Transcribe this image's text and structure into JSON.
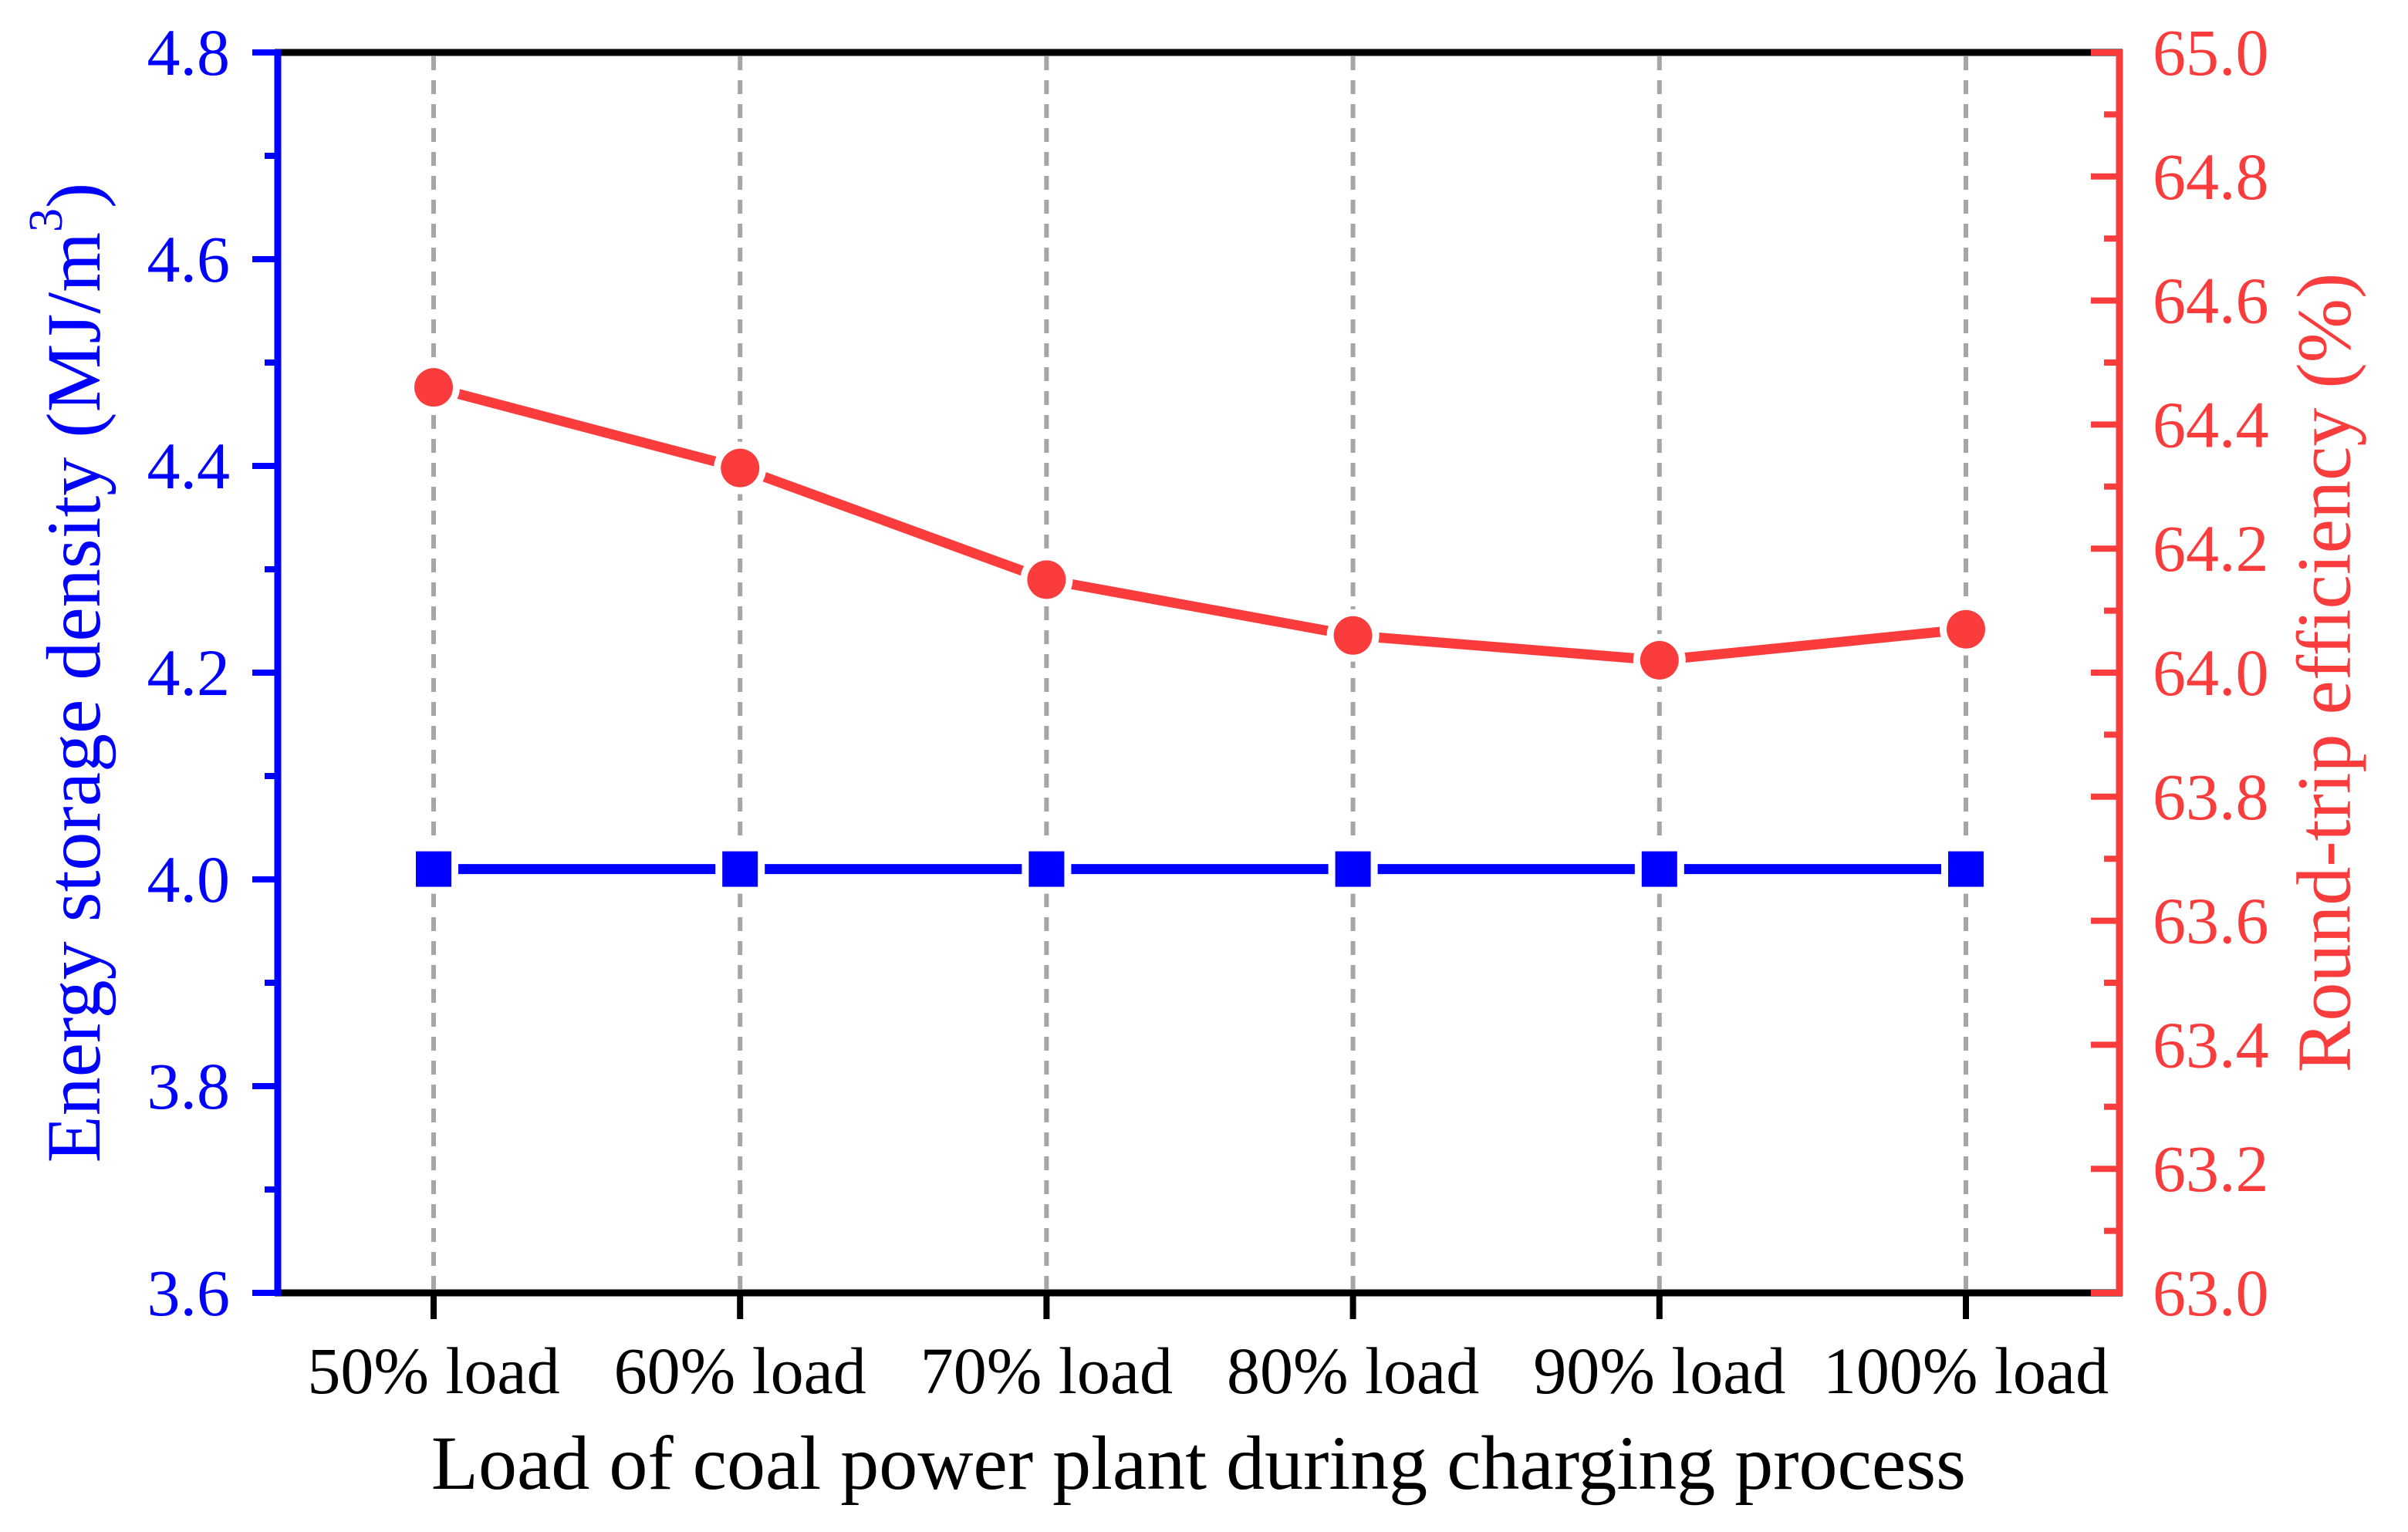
{
  "chart_data": {
    "type": "line",
    "title": "",
    "xlabel": "Load of coal power plant during charging process",
    "categories": [
      "50% load",
      "60% load",
      "70% load",
      "80% load",
      "90% load",
      "100% load"
    ],
    "grid": {
      "vertical_dashed": true,
      "color": "#A6A6A6"
    },
    "left_axis": {
      "label_main": "Energy storage density (MJ/m",
      "label_sup": "3",
      "label_close": ")",
      "color": "#0000FF",
      "min": 3.6,
      "max": 4.8,
      "major_step": 0.2,
      "minor_step": 0.1,
      "tick_labels": [
        "3.6",
        "3.8",
        "4.0",
        "4.2",
        "4.4",
        "4.6",
        "4.8"
      ]
    },
    "right_axis": {
      "label": "Round-trip efficiency (%)",
      "color": "#FA3C3C",
      "min": 63.0,
      "max": 65.0,
      "major_step": 0.2,
      "minor_step": 0.1,
      "tick_labels": [
        "63.0",
        "63.2",
        "63.4",
        "63.6",
        "63.8",
        "64.0",
        "64.2",
        "64.4",
        "64.6",
        "64.8",
        "65.0"
      ]
    },
    "series": [
      {
        "name": "Energy storage density",
        "axis": "left",
        "color": "#0000FF",
        "marker": "square",
        "values": [
          4.01,
          4.01,
          4.01,
          4.01,
          4.01,
          4.01
        ]
      },
      {
        "name": "Round-trip efficiency",
        "axis": "right",
        "color": "#FA3C3C",
        "marker": "circle",
        "values": [
          64.46,
          64.33,
          64.15,
          64.06,
          64.02,
          64.07
        ]
      }
    ]
  }
}
